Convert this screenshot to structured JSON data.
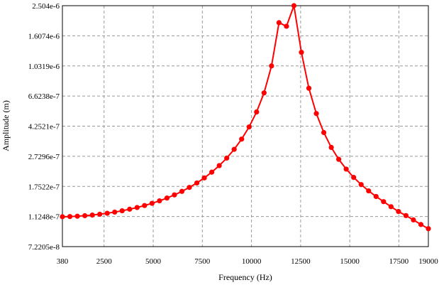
{
  "chart_data": {
    "type": "line",
    "title": "",
    "xlabel": "Frequency (Hz)",
    "ylabel": "Amplitude (m)",
    "xlim": [
      380,
      19000
    ],
    "ylim": [
      7.2205e-08,
      2.504e-06
    ],
    "yscale": "log",
    "grid": true,
    "legend": "none",
    "x_ticks": [
      380,
      2500,
      5000,
      7500,
      10000,
      12500,
      15000,
      17500,
      19000
    ],
    "x_tick_labels": [
      "380",
      "2500",
      "5000",
      "7500",
      "10000",
      "12500",
      "15000",
      "17500",
      "19000"
    ],
    "y_ticks": [
      7.2205e-08,
      1.1248e-07,
      1.7522e-07,
      2.7296e-07,
      4.2521e-07,
      6.6238e-07,
      1.0319e-06,
      1.6074e-06,
      2.504e-06
    ],
    "y_tick_labels": [
      "7.2205e-8",
      "1.1248e-7",
      "1.7522e-7",
      "2.7296e-7",
      "4.2521e-7",
      "6.6238e-7",
      "1.0319e-6",
      "1.6074e-6",
      "2.504e-6"
    ],
    "series": [
      {
        "color": "#ff0000",
        "x": [
          380,
          760,
          1140,
          1520,
          1900,
          2280,
          2660,
          3040,
          3420,
          3800,
          4180,
          4560,
          4940,
          5320,
          5700,
          6080,
          6460,
          6840,
          7220,
          7600,
          7980,
          8360,
          8740,
          9120,
          9500,
          9880,
          10260,
          10640,
          11020,
          11400,
          11780,
          12160,
          12540,
          12920,
          13300,
          13680,
          14060,
          14440,
          14820,
          15200,
          15580,
          15960,
          16340,
          16720,
          17100,
          17480,
          17860,
          18240,
          18620,
          19000
        ],
        "y": [
          1.121e-07,
          1.124e-07,
          1.13e-07,
          1.138e-07,
          1.149e-07,
          1.163e-07,
          1.18e-07,
          1.2e-07,
          1.224e-07,
          1.252e-07,
          1.284e-07,
          1.322e-07,
          1.366e-07,
          1.417e-07,
          1.476e-07,
          1.546e-07,
          1.628e-07,
          1.726e-07,
          1.843e-07,
          1.985e-07,
          2.16e-07,
          2.379e-07,
          2.658e-07,
          3.023e-07,
          3.514e-07,
          4.206e-07,
          5.24e-07,
          6.94e-07,
          1.032e-06,
          1.95e-06,
          1.85e-06,
          2.504e-06,
          1.26e-06,
          7.43e-07,
          5.12e-07,
          3.87e-07,
          3.11e-07,
          2.61e-07,
          2.26e-07,
          2e-07,
          1.8e-07,
          1.64e-07,
          1.51e-07,
          1.4e-07,
          1.3e-07,
          1.21e-07,
          1.14e-07,
          1.07e-07,
          1e-07,
          9.4e-08
        ]
      }
    ]
  }
}
